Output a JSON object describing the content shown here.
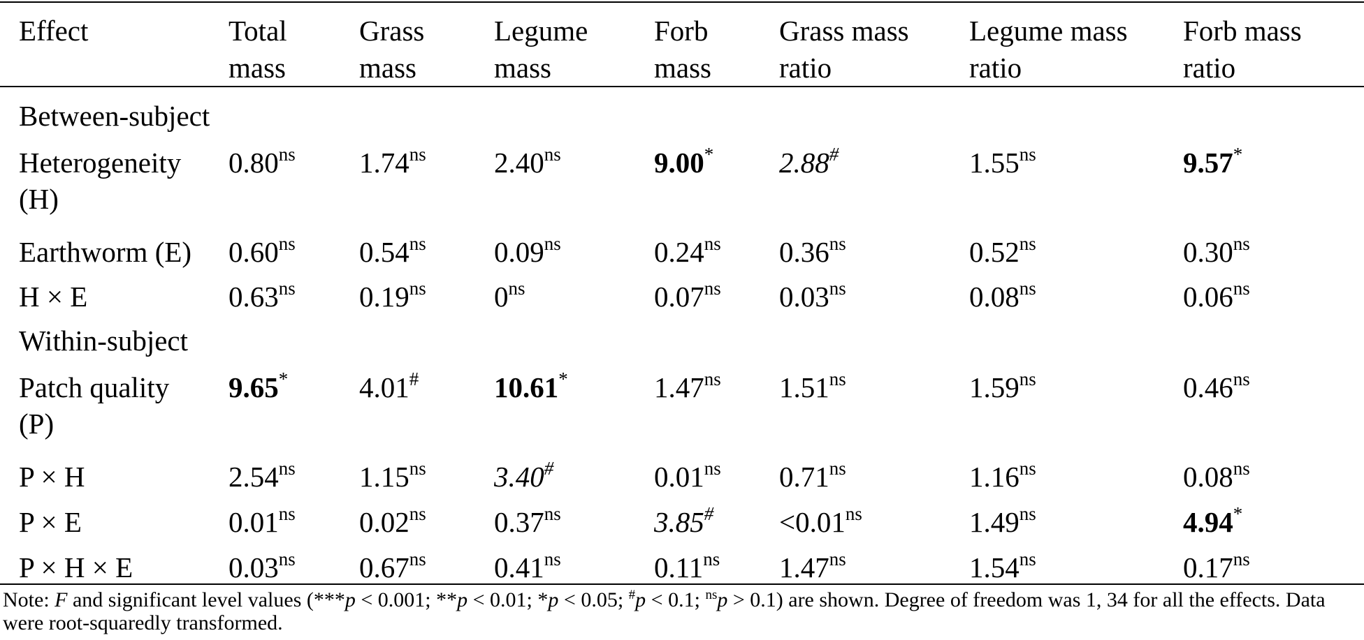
{
  "table": {
    "headers": [
      {
        "line1": "Effect",
        "line2": ""
      },
      {
        "line1": "Total",
        "line2": "mass"
      },
      {
        "line1": "Grass",
        "line2": "mass"
      },
      {
        "line1": "Legume",
        "line2": "mass"
      },
      {
        "line1": "Forb",
        "line2": "mass"
      },
      {
        "line1": "Grass mass",
        "line2": "ratio"
      },
      {
        "line1": "Legume mass",
        "line2": "ratio"
      },
      {
        "line1": "Forb mass",
        "line2": "ratio"
      }
    ],
    "sections": [
      {
        "title": "Between-subject",
        "rows": [
          {
            "label_line1": "Heterogeneity",
            "label_line2": "(H)",
            "cells": [
              {
                "value": "0.80",
                "sig": "ns",
                "style": "normal"
              },
              {
                "value": "1.74",
                "sig": "ns",
                "style": "normal"
              },
              {
                "value": "2.40",
                "sig": "ns",
                "style": "normal"
              },
              {
                "value": "9.00",
                "sig": "*",
                "style": "bold"
              },
              {
                "value": "2.88",
                "sig": "#",
                "style": "italic"
              },
              {
                "value": "1.55",
                "sig": "ns",
                "style": "normal"
              },
              {
                "value": "9.57",
                "sig": "*",
                "style": "bold"
              }
            ]
          },
          {
            "label_line1": "Earthworm (E)",
            "label_line2": "",
            "cells": [
              {
                "value": "0.60",
                "sig": "ns",
                "style": "normal"
              },
              {
                "value": "0.54",
                "sig": "ns",
                "style": "normal"
              },
              {
                "value": "0.09",
                "sig": "ns",
                "style": "normal"
              },
              {
                "value": "0.24",
                "sig": "ns",
                "style": "normal"
              },
              {
                "value": "0.36",
                "sig": "ns",
                "style": "normal"
              },
              {
                "value": "0.52",
                "sig": "ns",
                "style": "normal"
              },
              {
                "value": "0.30",
                "sig": "ns",
                "style": "normal"
              }
            ]
          },
          {
            "label_line1": "H × E",
            "label_line2": "",
            "cells": [
              {
                "value": "0.63",
                "sig": "ns",
                "style": "normal"
              },
              {
                "value": "0.19",
                "sig": "ns",
                "style": "normal"
              },
              {
                "value": "0",
                "sig": "ns",
                "style": "normal"
              },
              {
                "value": "0.07",
                "sig": "ns",
                "style": "normal"
              },
              {
                "value": "0.03",
                "sig": "ns",
                "style": "normal"
              },
              {
                "value": "0.08",
                "sig": "ns",
                "style": "normal"
              },
              {
                "value": "0.06",
                "sig": "ns",
                "style": "normal"
              }
            ]
          }
        ]
      },
      {
        "title": "Within-subject",
        "rows": [
          {
            "label_line1": "Patch quality",
            "label_line2": "(P)",
            "cells": [
              {
                "value": "9.65",
                "sig": "*",
                "style": "bold"
              },
              {
                "value": "4.01",
                "sig": "#",
                "style": "normal"
              },
              {
                "value": "10.61",
                "sig": "*",
                "style": "bold"
              },
              {
                "value": "1.47",
                "sig": "ns",
                "style": "normal"
              },
              {
                "value": "1.51",
                "sig": "ns",
                "style": "normal"
              },
              {
                "value": "1.59",
                "sig": "ns",
                "style": "normal"
              },
              {
                "value": "0.46",
                "sig": "ns",
                "style": "normal"
              }
            ]
          },
          {
            "label_line1": "P × H",
            "label_line2": "",
            "cells": [
              {
                "value": "2.54",
                "sig": "ns",
                "style": "normal"
              },
              {
                "value": "1.15",
                "sig": "ns",
                "style": "normal"
              },
              {
                "value": "3.40",
                "sig": "#",
                "style": "italic"
              },
              {
                "value": "0.01",
                "sig": "ns",
                "style": "normal"
              },
              {
                "value": "0.71",
                "sig": "ns",
                "style": "normal"
              },
              {
                "value": "1.16",
                "sig": "ns",
                "style": "normal"
              },
              {
                "value": "0.08",
                "sig": "ns",
                "style": "normal"
              }
            ]
          },
          {
            "label_line1": "P × E",
            "label_line2": "",
            "cells": [
              {
                "value": "0.01",
                "sig": "ns",
                "style": "normal"
              },
              {
                "value": "0.02",
                "sig": "ns",
                "style": "normal"
              },
              {
                "value": "0.37",
                "sig": "ns",
                "style": "normal"
              },
              {
                "value": "3.85",
                "sig": "#",
                "style": "italic"
              },
              {
                "value": "<0.01",
                "sig": "ns",
                "style": "normal"
              },
              {
                "value": "1.49",
                "sig": "ns",
                "style": "normal"
              },
              {
                "value": "4.94",
                "sig": "*",
                "style": "bold"
              }
            ]
          },
          {
            "label_line1": "P × H × E",
            "label_line2": "",
            "cells": [
              {
                "value": "0.03",
                "sig": "ns",
                "style": "normal"
              },
              {
                "value": "0.67",
                "sig": "ns",
                "style": "normal"
              },
              {
                "value": "0.41",
                "sig": "ns",
                "style": "normal"
              },
              {
                "value": "0.11",
                "sig": "ns",
                "style": "normal"
              },
              {
                "value": "1.47",
                "sig": "ns",
                "style": "normal"
              },
              {
                "value": "1.54",
                "sig": "ns",
                "style": "normal"
              },
              {
                "value": "0.17",
                "sig": "ns",
                "style": "normal"
              }
            ]
          }
        ]
      }
    ]
  },
  "note": {
    "lead": "Note: ",
    "f_symbol": "F",
    "part1": " and significant level values (***",
    "p1": "p",
    "part2": " < 0.001; **",
    "p2": "p",
    "part3": " < 0.01; *",
    "p3": "p",
    "part4": " < 0.05; ",
    "hash_sup": "#",
    "p4": "p",
    "part5": " < 0.1; ",
    "ns_sup": "ns",
    "p5": "p",
    "part6": " > 0.1) are shown. Degree of freedom was 1, 34 for all the effects. Data were root-squaredly transformed."
  }
}
